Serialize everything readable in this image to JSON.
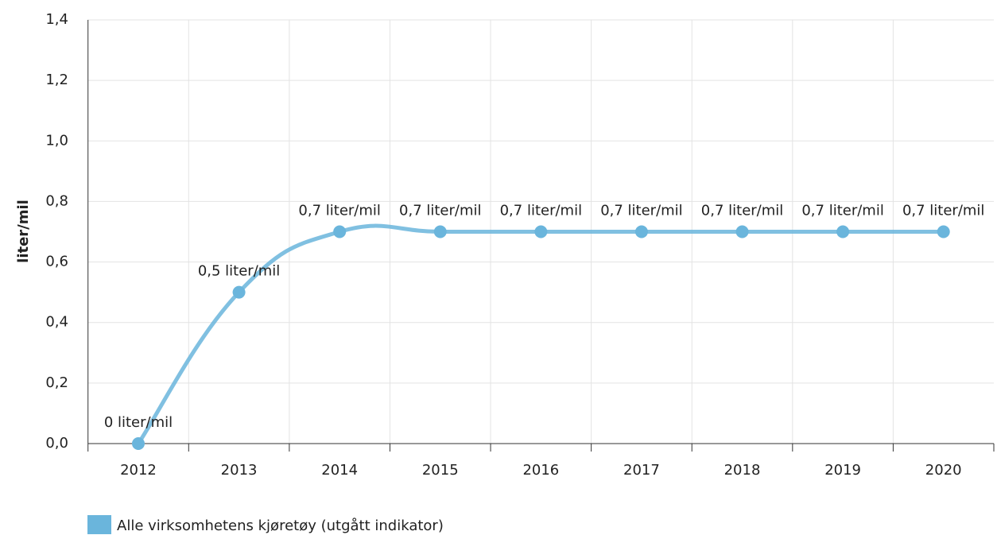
{
  "chart_data": {
    "type": "line",
    "y_label": "liter/mil",
    "categories": [
      "2012",
      "2013",
      "2014",
      "2015",
      "2016",
      "2017",
      "2018",
      "2019",
      "2020"
    ],
    "series": [
      {
        "name": "Alle virksomhetens kjøretøy (utgått indikator)",
        "color": "#6ab5dc",
        "values": [
          0,
          0.5,
          0.7,
          0.7,
          0.7,
          0.7,
          0.7,
          0.7,
          0.7
        ],
        "value_labels": [
          "0 liter/mil",
          "0,5 liter/mil",
          "0,7 liter/mil",
          "0,7 liter/mil",
          "0,7 liter/mil",
          "0,7 liter/mil",
          "0,7 liter/mil",
          "0,7 liter/mil",
          "0,7 liter/mil"
        ]
      }
    ],
    "ylim": [
      0,
      1.4
    ],
    "yticks": [
      {
        "value": 0,
        "label": "0,0"
      },
      {
        "value": 0.2,
        "label": "0,2"
      },
      {
        "value": 0.4,
        "label": "0,4"
      },
      {
        "value": 0.6,
        "label": "0,6"
      },
      {
        "value": 0.8,
        "label": "0,8"
      },
      {
        "value": 1.0,
        "label": "1,0"
      },
      {
        "value": 1.2,
        "label": "1,2"
      },
      {
        "value": 1.4,
        "label": "1,4"
      }
    ],
    "grid": true
  }
}
